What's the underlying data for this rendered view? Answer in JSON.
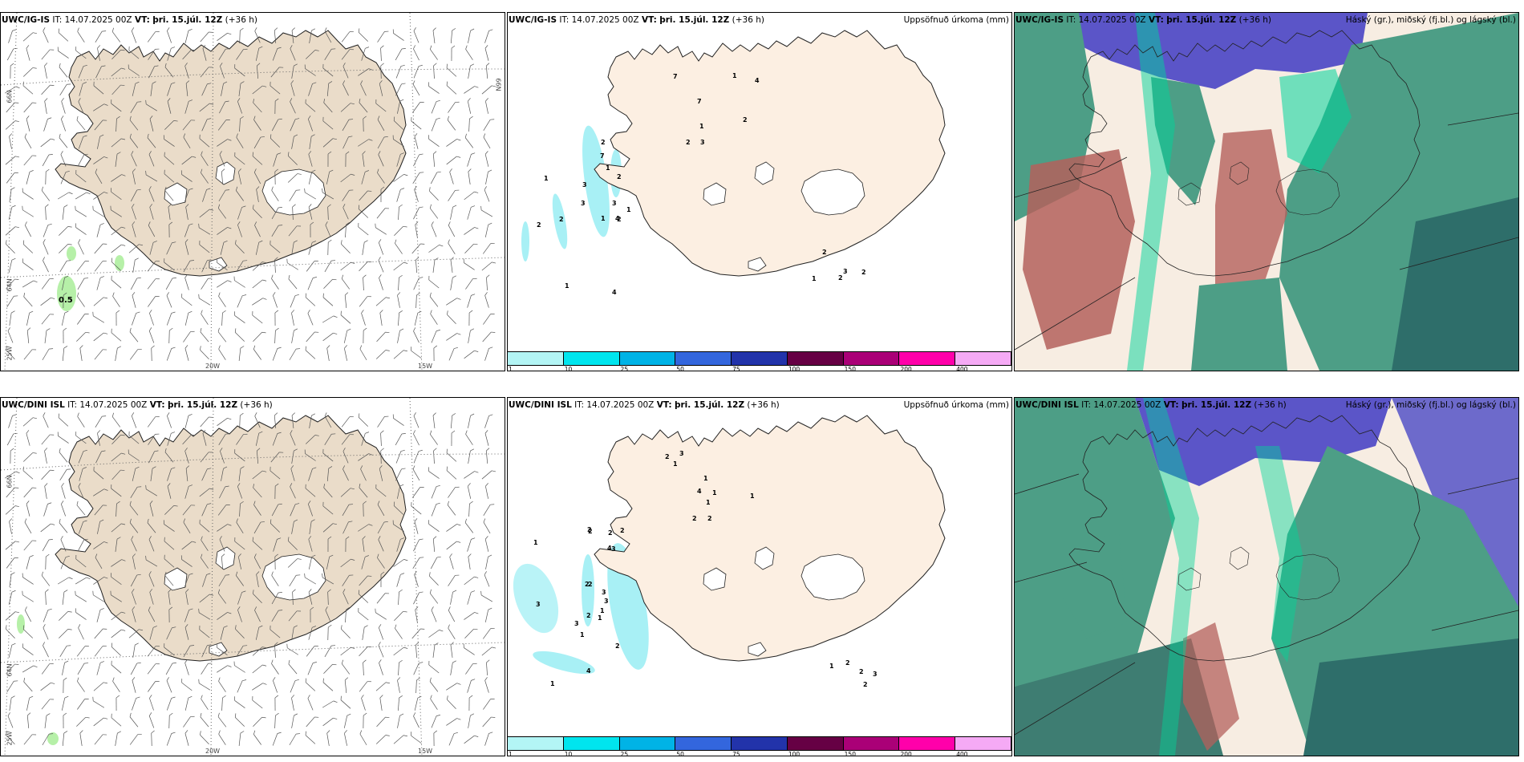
{
  "panels": [
    {
      "model": "UWC/IG-IS",
      "it": "IT: 14.07.2025 00Z",
      "vt_label": "VT:",
      "vt": "þri. 15.júl. 12Z",
      "lead": "(+36 h)",
      "right": ""
    },
    {
      "model": "UWC/IG-IS",
      "it": "IT: 14.07.2025 00Z",
      "vt_label": "VT:",
      "vt": "þri. 15.júl. 12Z",
      "lead": "(+36 h)",
      "right": "Uppsöfnuð úrkoma (mm)"
    },
    {
      "model": "UWC/IG-IS",
      "it": "IT: 14.07.2025 00Z",
      "vt_label": "VT:",
      "vt": "þri. 15.júl. 12Z",
      "lead": "(+36 h)",
      "right": "Háský (gr.), miðský (fj.bl.) og lágský (bl.)"
    },
    {
      "model": "UWC/DINI ISL",
      "it": "IT: 14.07.2025 00Z",
      "vt_label": "VT:",
      "vt": "þri. 15.júl. 12Z",
      "lead": "(+36 h)",
      "right": ""
    },
    {
      "model": "UWC/DINI ISL",
      "it": "IT: 14.07.2025 00Z",
      "vt_label": "VT:",
      "vt": "þri. 15.júl. 12Z",
      "lead": "(+36 h)",
      "right": "Uppsöfnuð úrkoma (mm)"
    },
    {
      "model": "UWC/DINI ISL",
      "it": "IT: 14.07.2025 00Z",
      "vt_label": "VT:",
      "vt": "þri. 15.júl. 12Z",
      "lead": "(+36 h)",
      "right": "Háský (gr.), miðský (fj.bl.) og lágský (bl.)"
    }
  ],
  "grid_labels": {
    "lat66": "66N",
    "lat64": "64N",
    "lon25": "25W",
    "lon20": "20W",
    "lon15": "15W"
  },
  "wind_contour_label": "0.5",
  "precip_colorbar": {
    "ticks": [
      "1",
      "10",
      "25",
      "50",
      "75",
      "100",
      "150",
      "200",
      "400"
    ],
    "colors": [
      "#b3f5f5",
      "#00e5ee",
      "#00b3e6",
      "#3366dd",
      "#2233aa",
      "#660044",
      "#aa0077",
      "#ff00aa",
      "#f5aaf5"
    ]
  },
  "precip_values_top": [
    "1",
    "2",
    "1",
    "2",
    "1",
    "3",
    "1",
    "2",
    "2",
    "1",
    "2",
    "1",
    "7",
    "4",
    "7",
    "4",
    "3",
    "7",
    "3",
    "3",
    "4",
    "2",
    "1",
    "2",
    "2",
    "3",
    "2",
    "1",
    "2"
  ],
  "precip_values_bottom": [
    "1",
    "2",
    "2",
    "1",
    "2",
    "1",
    "2",
    "2",
    "1",
    "3",
    "2",
    "1",
    "2",
    "3",
    "3",
    "4",
    "1",
    "2",
    "4",
    "1",
    "2",
    "2",
    "3",
    "4",
    "1",
    "2",
    "1",
    "3",
    "3",
    "1",
    "2",
    "2",
    "3",
    "2",
    "1"
  ],
  "colors": {
    "land": "#eadcc9",
    "land_precip": "#fcefe2",
    "coast": "#222222",
    "cloud_high": "#00d49a",
    "cloud_mid": "#4d9e86",
    "cloud_low": "#5b55c8",
    "precip_light": "#a8f0f5",
    "wind_green": "#b6f0a8"
  }
}
